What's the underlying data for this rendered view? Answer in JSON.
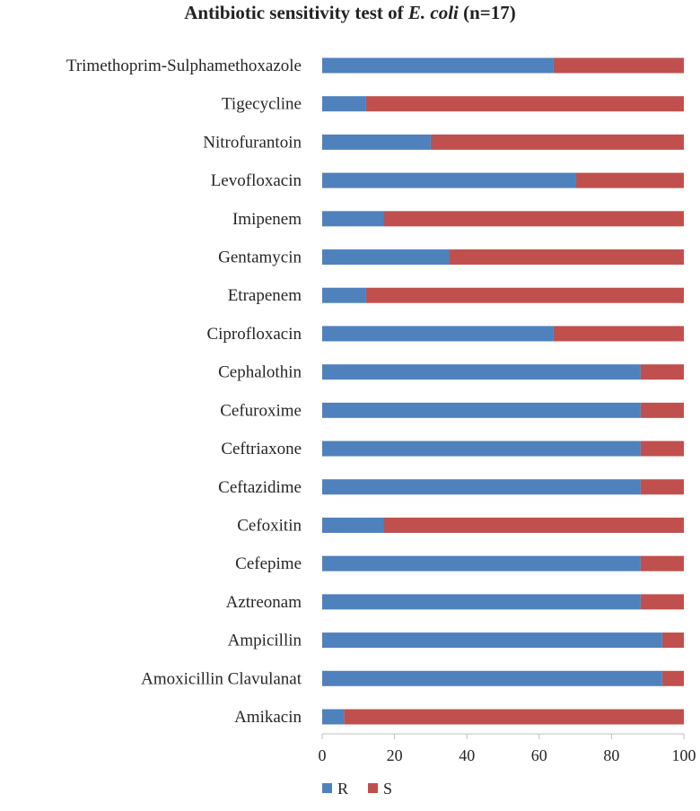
{
  "chart_data": {
    "type": "bar",
    "orientation": "horizontal",
    "stacked": true,
    "title_parts": [
      "Antibiotic  sensitivity test of ",
      "E. coli",
      " (n=17)"
    ],
    "categories": [
      "Trimethoprim-Sulphamethoxazole",
      "Tigecycline",
      "Nitrofurantoin",
      "Levofloxacin",
      "Imipenem",
      "Gentamycin",
      "Etrapenem",
      "Ciprofloxacin",
      "Cephalothin",
      "Cefuroxime",
      "Ceftriaxone",
      "Ceftazidime",
      "Cefoxitin",
      "Cefepime",
      "Aztreonam",
      "Ampicillin",
      "Amoxicillin Clavulanat",
      "Amikacin"
    ],
    "series": [
      {
        "name": "R",
        "color": "#4f81bd",
        "values": [
          64,
          12,
          30,
          70,
          17,
          35,
          12,
          64,
          88,
          88,
          88,
          88,
          17,
          88,
          88,
          94,
          94,
          6
        ]
      },
      {
        "name": "S",
        "color": "#c0504d",
        "values": [
          36,
          88,
          70,
          30,
          83,
          65,
          88,
          36,
          12,
          12,
          12,
          12,
          83,
          12,
          12,
          6,
          6,
          94
        ]
      }
    ],
    "xlim": [
      0,
      100
    ],
    "xticks": [
      "0",
      "20",
      "40",
      "60",
      "80",
      "100"
    ],
    "legend_position": "bottom-left",
    "grid": false
  }
}
